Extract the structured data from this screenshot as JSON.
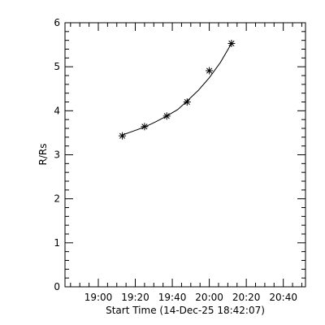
{
  "chart_data": {
    "type": "scatter",
    "title": "",
    "xlabel": "Start Time (14-Dec-25 18:42:07)",
    "ylabel": "R/Rs",
    "xlim": [
      "18:42",
      "20:52"
    ],
    "ylim": [
      0,
      6
    ],
    "x_tick_labels": [
      "19:00",
      "19:20",
      "19:40",
      "20:00",
      "20:20",
      "20:40"
    ],
    "y_tick_labels": [
      "0",
      "1",
      "2",
      "3",
      "4",
      "5",
      "6"
    ],
    "marker": "asterisk",
    "fit_line": true,
    "grid": false,
    "color": "#000000",
    "series": [
      {
        "x": [
          "19:13",
          "19:25",
          "19:37",
          "19:48",
          "20:00",
          "20:12"
        ],
        "y": [
          3.43,
          3.64,
          3.88,
          4.2,
          4.91,
          5.53
        ]
      }
    ],
    "fit_points": {
      "x": [
        "19:13",
        "19:19",
        "19:25",
        "19:31",
        "19:37",
        "19:43",
        "19:48",
        "19:54",
        "20:00",
        "20:06",
        "20:12"
      ],
      "y": [
        3.45,
        3.54,
        3.63,
        3.75,
        3.88,
        4.03,
        4.22,
        4.46,
        4.75,
        5.1,
        5.53
      ]
    }
  }
}
